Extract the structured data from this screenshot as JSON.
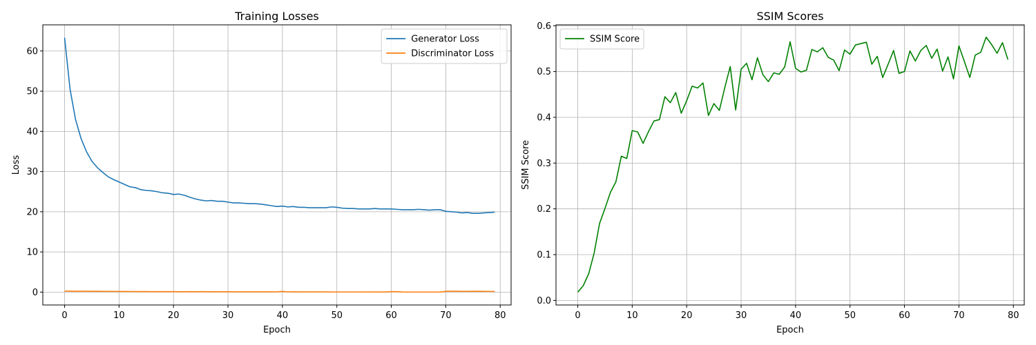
{
  "chart_data": [
    {
      "type": "line",
      "title": "Training Losses",
      "xlabel": "Epoch",
      "ylabel": "Loss",
      "xlim": [
        -4,
        82
      ],
      "ylim": [
        -3.2,
        66.5
      ],
      "xticks": [
        0,
        10,
        20,
        30,
        40,
        50,
        60,
        70,
        80
      ],
      "yticks": [
        0,
        10,
        20,
        30,
        40,
        50,
        60
      ],
      "grid": true,
      "legend_position": "upper right",
      "series": [
        {
          "name": "Generator Loss",
          "color": "#1f77b4",
          "x": [
            0,
            1,
            2,
            3,
            4,
            5,
            6,
            7,
            8,
            9,
            10,
            11,
            12,
            13,
            14,
            15,
            16,
            17,
            18,
            19,
            20,
            21,
            22,
            23,
            24,
            25,
            26,
            27,
            28,
            29,
            30,
            31,
            32,
            33,
            34,
            35,
            36,
            37,
            38,
            39,
            40,
            41,
            42,
            43,
            44,
            45,
            46,
            47,
            48,
            49,
            50,
            51,
            52,
            53,
            54,
            55,
            56,
            57,
            58,
            59,
            60,
            61,
            62,
            63,
            64,
            65,
            66,
            67,
            68,
            69,
            70,
            71,
            72,
            73,
            74,
            75,
            76,
            77,
            78,
            79
          ],
          "values": [
            63.3,
            50.5,
            43.0,
            38.3,
            35.0,
            32.6,
            31.0,
            29.8,
            28.7,
            28.0,
            27.4,
            26.8,
            26.2,
            26.0,
            25.5,
            25.3,
            25.2,
            25.0,
            24.7,
            24.6,
            24.3,
            24.4,
            24.1,
            23.6,
            23.2,
            22.9,
            22.7,
            22.8,
            22.6,
            22.6,
            22.4,
            22.2,
            22.2,
            22.1,
            22.0,
            22.0,
            21.9,
            21.7,
            21.5,
            21.3,
            21.4,
            21.2,
            21.3,
            21.1,
            21.1,
            21.0,
            21.0,
            21.0,
            21.0,
            21.2,
            21.1,
            20.9,
            20.8,
            20.8,
            20.7,
            20.7,
            20.7,
            20.8,
            20.7,
            20.7,
            20.7,
            20.6,
            20.5,
            20.5,
            20.5,
            20.6,
            20.5,
            20.4,
            20.5,
            20.5,
            20.1,
            20.0,
            19.9,
            19.7,
            19.8,
            19.6,
            19.6,
            19.7,
            19.8,
            19.9
          ]
        },
        {
          "name": "Discriminator Loss",
          "color": "#ff7f0e",
          "x": [
            0,
            1,
            2,
            3,
            4,
            5,
            6,
            7,
            8,
            9,
            10,
            11,
            12,
            13,
            14,
            15,
            16,
            17,
            18,
            19,
            20,
            21,
            22,
            23,
            24,
            25,
            26,
            27,
            28,
            29,
            30,
            31,
            32,
            33,
            34,
            35,
            36,
            37,
            38,
            39,
            40,
            41,
            42,
            43,
            44,
            45,
            46,
            47,
            48,
            49,
            50,
            51,
            52,
            53,
            54,
            55,
            56,
            57,
            58,
            59,
            60,
            61,
            62,
            63,
            64,
            65,
            66,
            67,
            68,
            69,
            70,
            71,
            72,
            73,
            74,
            75,
            76,
            77,
            78,
            79
          ],
          "values": [
            0.25,
            0.24,
            0.23,
            0.22,
            0.22,
            0.2,
            0.2,
            0.18,
            0.18,
            0.17,
            0.16,
            0.16,
            0.15,
            0.15,
            0.14,
            0.14,
            0.12,
            0.12,
            0.12,
            0.11,
            0.12,
            0.1,
            0.1,
            0.12,
            0.1,
            0.11,
            0.1,
            0.1,
            0.1,
            0.08,
            0.09,
            0.08,
            0.08,
            0.08,
            0.08,
            0.07,
            0.07,
            0.08,
            0.07,
            0.06,
            0.18,
            0.06,
            0.07,
            0.05,
            0.05,
            0.05,
            0.05,
            0.05,
            0.05,
            0.04,
            0.04,
            0.04,
            0.04,
            0.04,
            0.04,
            0.04,
            0.03,
            0.04,
            0.03,
            0.03,
            0.12,
            0.12,
            0.03,
            0.02,
            0.02,
            0.02,
            0.02,
            0.02,
            0.02,
            0.02,
            0.2,
            0.22,
            0.22,
            0.18,
            0.18,
            0.2,
            0.2,
            0.18,
            0.17,
            0.17
          ]
        }
      ]
    },
    {
      "type": "line",
      "title": "SSIM Scores",
      "xlabel": "Epoch",
      "ylabel": "SSIM Score",
      "xlim": [
        -4,
        82
      ],
      "ylim": [
        -0.01,
        0.602
      ],
      "xticks": [
        0,
        10,
        20,
        30,
        40,
        50,
        60,
        70,
        80
      ],
      "yticks": [
        0.0,
        0.1,
        0.2,
        0.3,
        0.4,
        0.5,
        0.6
      ],
      "grid": true,
      "legend_position": "upper left",
      "series": [
        {
          "name": "SSIM Score",
          "color": "#008000",
          "x": [
            0,
            1,
            2,
            3,
            4,
            5,
            6,
            7,
            8,
            9,
            10,
            11,
            12,
            13,
            14,
            15,
            16,
            17,
            18,
            19,
            20,
            21,
            22,
            23,
            24,
            25,
            26,
            27,
            28,
            29,
            30,
            31,
            32,
            33,
            34,
            35,
            36,
            37,
            38,
            39,
            40,
            41,
            42,
            43,
            44,
            45,
            46,
            47,
            48,
            49,
            50,
            51,
            52,
            53,
            54,
            55,
            56,
            57,
            58,
            59,
            60,
            61,
            62,
            63,
            64,
            65,
            66,
            67,
            68,
            69,
            70,
            71,
            72,
            73,
            74,
            75,
            76,
            77,
            78,
            79
          ],
          "values": [
            0.018,
            0.032,
            0.058,
            0.103,
            0.168,
            0.201,
            0.236,
            0.259,
            0.315,
            0.31,
            0.371,
            0.368,
            0.343,
            0.369,
            0.392,
            0.395,
            0.445,
            0.432,
            0.454,
            0.409,
            0.436,
            0.468,
            0.464,
            0.475,
            0.404,
            0.43,
            0.415,
            0.465,
            0.511,
            0.416,
            0.505,
            0.518,
            0.482,
            0.53,
            0.493,
            0.478,
            0.497,
            0.494,
            0.51,
            0.565,
            0.507,
            0.499,
            0.503,
            0.548,
            0.543,
            0.552,
            0.531,
            0.525,
            0.502,
            0.547,
            0.538,
            0.558,
            0.561,
            0.564,
            0.516,
            0.533,
            0.487,
            0.516,
            0.546,
            0.496,
            0.5,
            0.545,
            0.523,
            0.546,
            0.557,
            0.529,
            0.549,
            0.501,
            0.532,
            0.484,
            0.556,
            0.522,
            0.487,
            0.536,
            0.542,
            0.575,
            0.559,
            0.54,
            0.563,
            0.526
          ]
        }
      ]
    }
  ]
}
